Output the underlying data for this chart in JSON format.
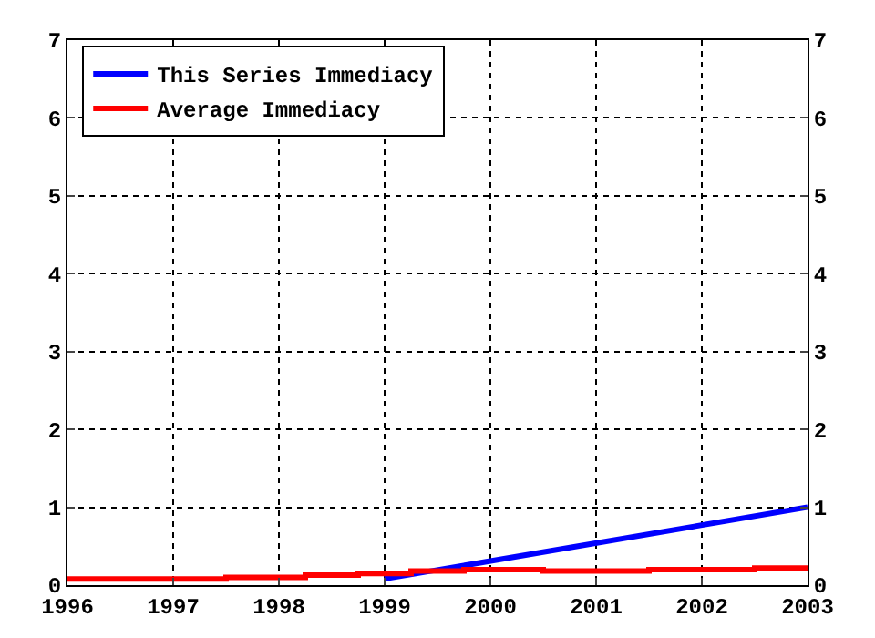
{
  "chart_data": {
    "type": "line",
    "series": [
      {
        "name": "This Series Immediacy",
        "color": "#0000ff",
        "x": [
          1999,
          2003
        ],
        "values": [
          0.08,
          1.0
        ]
      },
      {
        "name": "Average Immediacy",
        "color": "#ff0000",
        "type": "step",
        "x": [
          1996,
          1997.5,
          1998.25,
          1998.75,
          1999.25,
          1999.75,
          2000.5,
          2001.5,
          2002.5,
          2003
        ],
        "values": [
          0.08,
          0.1,
          0.13,
          0.15,
          0.18,
          0.2,
          0.18,
          0.2,
          0.22,
          0.22
        ]
      }
    ],
    "xlim": [
      1996,
      2003
    ],
    "xticks": [
      1996,
      1997,
      1998,
      1999,
      2000,
      2001,
      2002,
      2003
    ],
    "ylim": [
      0,
      7
    ],
    "yticks": [
      0,
      1,
      2,
      3,
      4,
      5,
      6,
      7
    ],
    "y2lim": [
      0,
      7
    ],
    "y2ticks": [
      0,
      1,
      2,
      3,
      4,
      5,
      6,
      7
    ],
    "grid": true,
    "legend": "top left",
    "line_style": "solid",
    "marker": "none"
  }
}
